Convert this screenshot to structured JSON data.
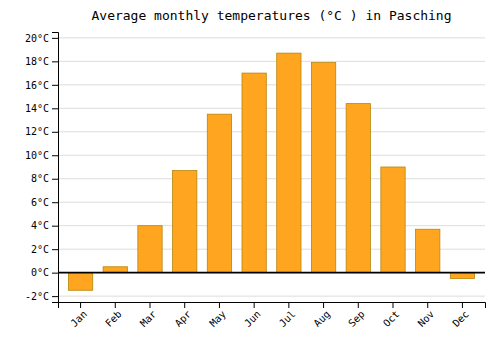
{
  "chart_data": {
    "type": "bar",
    "title": "Average monthly temperatures (°C ) in Pasching",
    "categories": [
      "Jan",
      "Feb",
      "Mar",
      "Apr",
      "May",
      "Jun",
      "Jul",
      "Aug",
      "Sep",
      "Oct",
      "Nov",
      "Dec"
    ],
    "values": [
      -1.5,
      0.5,
      4.0,
      8.7,
      13.5,
      17.0,
      18.7,
      17.9,
      14.4,
      9.0,
      3.7,
      -0.5
    ],
    "color": "#FFA520",
    "ylim": [
      -2.5,
      20.5
    ],
    "yticks": [
      {
        "value": -2,
        "label": "-2°C"
      },
      {
        "value": 0,
        "label": "0°C"
      },
      {
        "value": 2,
        "label": "2°C"
      },
      {
        "value": 4,
        "label": "4°C"
      },
      {
        "value": 6,
        "label": "6°C"
      },
      {
        "value": 8,
        "label": "8°C"
      },
      {
        "value": 10,
        "label": "10°C"
      },
      {
        "value": 12,
        "label": "12°C"
      },
      {
        "value": 14,
        "label": "14°C"
      },
      {
        "value": 16,
        "label": "16°C"
      },
      {
        "value": 18,
        "label": "18°C"
      },
      {
        "value": 20,
        "label": "20°C"
      }
    ],
    "grid": true
  }
}
